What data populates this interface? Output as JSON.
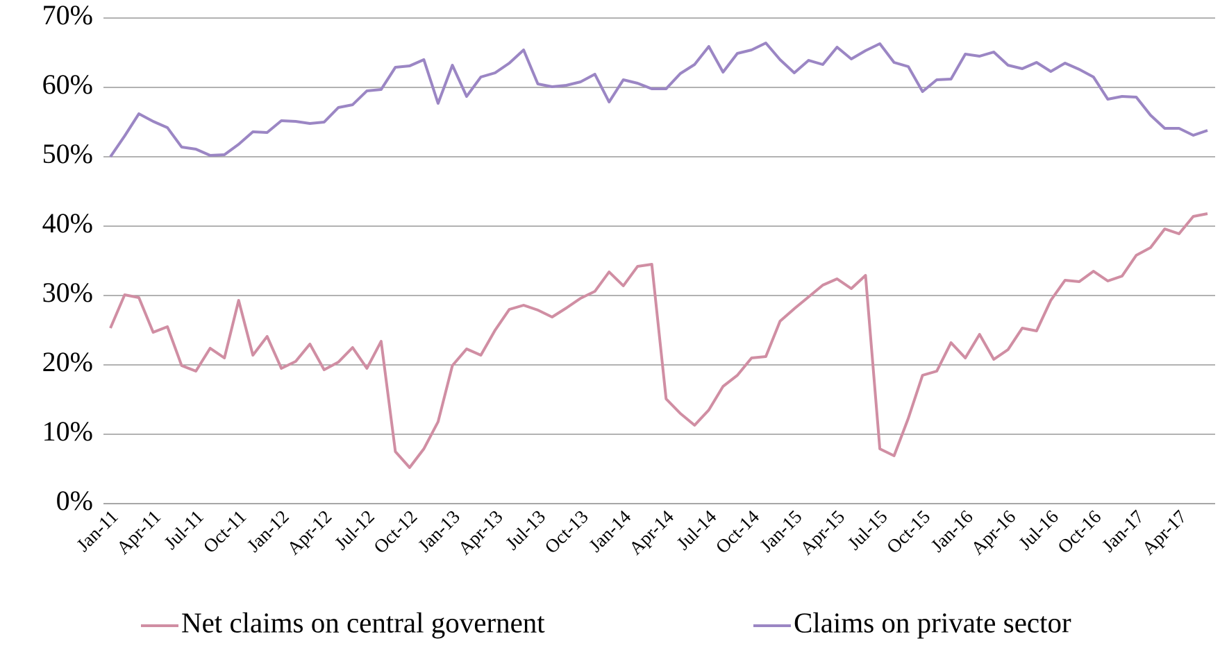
{
  "chart_data": {
    "type": "line",
    "categories": [
      "Jan-11",
      null,
      null,
      "Apr-11",
      null,
      null,
      "Jul-11",
      null,
      null,
      "Oct-11",
      null,
      null,
      "Jan-12",
      null,
      null,
      "Apr-12",
      null,
      null,
      "Jul-12",
      null,
      null,
      "Oct-12",
      null,
      null,
      "Jan-13",
      null,
      null,
      "Apr-13",
      null,
      null,
      "Jul-13",
      null,
      null,
      "Oct-13",
      null,
      null,
      "Jan-14",
      null,
      null,
      "Apr-14",
      null,
      null,
      "Jul-14",
      null,
      null,
      "Oct-14",
      null,
      null,
      "Jan-15",
      null,
      null,
      "Apr-15",
      null,
      null,
      "Jul-15",
      null,
      null,
      "Oct-15",
      null,
      null,
      "Jan-16",
      null,
      null,
      "Apr-16",
      null,
      null,
      "Jul-16",
      null,
      null,
      "Oct-16",
      null,
      null,
      "Jan-17",
      null,
      null,
      "Apr-17",
      null,
      null
    ],
    "series": [
      {
        "name": "Net claims on central governent",
        "color": "#d08ea3",
        "values": [
          25.3,
          30.1,
          29.7,
          24.7,
          25.5,
          19.9,
          19.1,
          22.4,
          21.0,
          29.3,
          21.4,
          24.1,
          19.5,
          20.5,
          23.0,
          19.3,
          20.4,
          22.5,
          19.5,
          23.4,
          7.5,
          5.2,
          7.9,
          11.8,
          19.9,
          22.3,
          21.4,
          25.0,
          28.0,
          28.6,
          27.9,
          26.9,
          28.2,
          29.6,
          30.6,
          33.4,
          31.4,
          34.2,
          34.5,
          15.1,
          13.0,
          11.3,
          13.5,
          16.9,
          18.5,
          21.0,
          21.2,
          26.3,
          28.1,
          29.8,
          31.5,
          32.4,
          31.0,
          32.9,
          7.9,
          6.9,
          12.3,
          18.5,
          19.1,
          23.2,
          21.0,
          24.4,
          20.8,
          22.2,
          25.3,
          24.9,
          29.3,
          32.2,
          32.0,
          33.5,
          32.1,
          32.8,
          35.8,
          36.9,
          39.6,
          38.9,
          41.4,
          41.8
        ]
      },
      {
        "name": "Claims on private sector",
        "color": "#9b86c4",
        "values": [
          50.0,
          53.0,
          56.2,
          55.1,
          54.2,
          51.4,
          51.1,
          50.2,
          50.3,
          51.8,
          53.6,
          53.5,
          55.2,
          55.1,
          54.8,
          55.0,
          57.1,
          57.5,
          59.5,
          59.7,
          62.9,
          63.1,
          64.0,
          57.7,
          63.2,
          58.7,
          61.5,
          62.1,
          63.5,
          65.4,
          60.5,
          60.1,
          60.3,
          60.8,
          61.9,
          57.9,
          61.1,
          60.6,
          59.8,
          59.8,
          62.0,
          63.3,
          65.9,
          62.2,
          64.9,
          65.4,
          66.4,
          64.0,
          62.1,
          63.9,
          63.3,
          65.8,
          64.1,
          65.3,
          66.3,
          63.6,
          63.0,
          59.4,
          61.1,
          61.2,
          64.8,
          64.5,
          65.1,
          63.2,
          62.7,
          63.6,
          62.3,
          63.5,
          62.6,
          61.5,
          58.3,
          58.7,
          58.6,
          56.0,
          54.1,
          54.1,
          53.1,
          53.8
        ]
      }
    ],
    "ylim": [
      0,
      70
    ],
    "yticks": [
      {
        "value": 0,
        "label": "0%"
      },
      {
        "value": 10,
        "label": "10%"
      },
      {
        "value": 20,
        "label": "20%"
      },
      {
        "value": 30,
        "label": "30%"
      },
      {
        "value": 40,
        "label": "40%"
      },
      {
        "value": 50,
        "label": "50%"
      },
      {
        "value": 60,
        "label": "60%"
      },
      {
        "value": 70,
        "label": "70%"
      }
    ],
    "grid": true,
    "legend": "bottom"
  }
}
